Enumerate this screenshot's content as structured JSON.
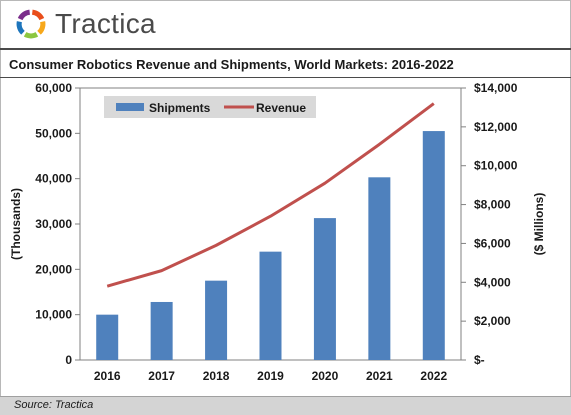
{
  "brand": {
    "name": "Tractica",
    "colors": [
      "#e94e1b",
      "#f7a81b",
      "#8cc63f",
      "#1d75bc",
      "#7b2d8b"
    ]
  },
  "footer": {
    "source": "Source: Tractica"
  },
  "chart_data": {
    "type": "bar",
    "title": "Consumer Robotics Revenue and Shipments, World Markets: 2016-2022",
    "categories": [
      "2016",
      "2017",
      "2018",
      "2019",
      "2020",
      "2021",
      "2022"
    ],
    "series": [
      {
        "name": "Shipments",
        "type": "bar",
        "axis": "left",
        "color": "#4f81bd",
        "values": [
          10000,
          12800,
          17500,
          23900,
          31300,
          40300,
          50500
        ]
      },
      {
        "name": "Revenue",
        "type": "line",
        "axis": "right",
        "color": "#c0504d",
        "values": [
          3800,
          4600,
          5900,
          7400,
          9100,
          11100,
          13200
        ]
      }
    ],
    "ylabel_left": "(Thousands)",
    "ylabel_right": "($ Millions)",
    "ylim_left": [
      0,
      60000
    ],
    "ylim_right": [
      0,
      14000
    ],
    "yticks_left": [
      "0",
      "10,000",
      "20,000",
      "30,000",
      "40,000",
      "50,000",
      "60,000"
    ],
    "yticks_right": [
      "$-",
      "$2,000",
      "$4,000",
      "$6,000",
      "$8,000",
      "$10,000",
      "$12,000",
      "$14,000"
    ],
    "grid": false,
    "legend": "top-left"
  }
}
